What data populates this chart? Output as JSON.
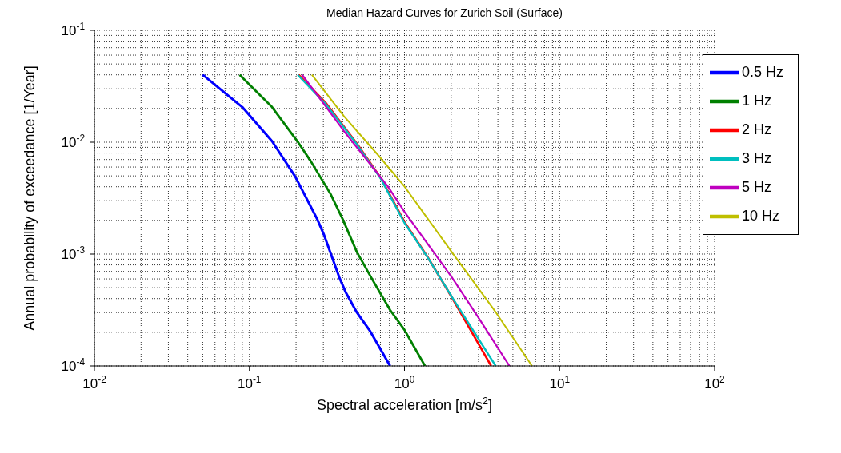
{
  "chart_data": {
    "type": "line",
    "title": "Median Hazard Curves for Zurich Soil (Surface)",
    "xlabel": "Spectral acceleration [m/s$^{2}$]",
    "ylabel": "Annual probability of exceedance [1/Year]",
    "log": "xy",
    "grid": true,
    "legend": "top right",
    "line_style": "solid",
    "marker": "none",
    "xlim": [
      0.01,
      100
    ],
    "xticks": [
      {
        "value": 0.01,
        "label": "10$^{-2}$"
      },
      {
        "value": 0.1,
        "label": "10$^{-1}$"
      },
      {
        "value": 1,
        "label": "10$^{0}$"
      },
      {
        "value": 10,
        "label": "10$^{1}$"
      },
      {
        "value": 100,
        "label": "10$^{2}$"
      }
    ],
    "ylim": [
      0.0001,
      0.1
    ],
    "yticks": [
      {
        "value": 0.0001,
        "label": "10$^{-4}$"
      },
      {
        "value": 0.001,
        "label": "10$^{-3}$"
      },
      {
        "value": 0.01,
        "label": "10$^{-2}$"
      },
      {
        "value": 0.1,
        "label": "10$^{-1}$"
      }
    ],
    "series": [
      {
        "name": "0.5 Hz",
        "color": "#0000ff",
        "x": [
          0.05,
          0.09,
          0.14,
          0.198,
          0.274,
          0.302,
          0.38,
          0.42,
          0.494,
          0.602,
          0.808
        ],
        "values": [
          0.04,
          0.0206,
          0.0102,
          0.0049,
          0.00205,
          0.0015,
          0.00062,
          0.00045,
          0.0003,
          0.000204,
          0.0001
        ]
      },
      {
        "name": "1 Hz",
        "color": "#008000",
        "x": [
          0.0865,
          0.14,
          0.204,
          0.249,
          0.334,
          0.4,
          0.494,
          0.622,
          0.808,
          1.0,
          1.356
        ],
        "values": [
          0.04,
          0.0206,
          0.0102,
          0.00675,
          0.00344,
          0.00205,
          0.00104,
          0.00059,
          0.000316,
          0.00021,
          0.0001
        ]
      },
      {
        "name": "2 Hz",
        "color": "#ff0000",
        "x": [
          0.208,
          0.313,
          0.494,
          0.71,
          1.0,
          1.41,
          2.02,
          3.62
        ],
        "values": [
          0.04,
          0.0222,
          0.0097,
          0.00469,
          0.00194,
          0.00094,
          0.00041,
          0.0001
        ]
      },
      {
        "name": "3 Hz",
        "color": "#00bfbf",
        "x": [
          0.205,
          0.31,
          0.49,
          0.705,
          1.0,
          1.42,
          2.05,
          3.87
        ],
        "values": [
          0.04,
          0.022,
          0.0097,
          0.0047,
          0.0019,
          0.00092,
          0.0004,
          0.0001
        ]
      },
      {
        "name": "5 Hz",
        "color": "#bf00bf",
        "x": [
          0.219,
          0.407,
          0.782,
          1.0,
          2.02,
          3.0,
          4.75
        ],
        "values": [
          0.04,
          0.0126,
          0.00402,
          0.00239,
          0.00062,
          0.00027,
          0.0001
        ]
      },
      {
        "name": "10 Hz",
        "color": "#bfbf00",
        "x": [
          0.253,
          0.407,
          0.686,
          1.0,
          2.02,
          3.89,
          6.64
        ],
        "values": [
          0.04,
          0.0171,
          0.0075,
          0.00402,
          0.00104,
          0.0003,
          0.0001
        ]
      }
    ]
  }
}
